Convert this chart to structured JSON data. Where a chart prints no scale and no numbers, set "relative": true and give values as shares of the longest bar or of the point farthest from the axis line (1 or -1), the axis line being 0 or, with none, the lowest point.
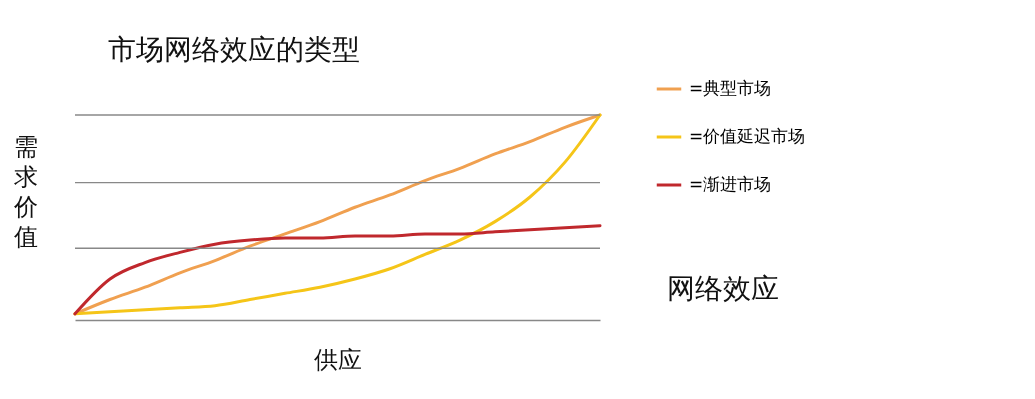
{
  "chart_data": {
    "type": "line",
    "title": "市场网络效应的类型",
    "xlabel": "供应",
    "ylabel": "需求价值",
    "annotations": [
      "网络效应"
    ],
    "relative": true,
    "ref_lines": [
      {
        "axis": "y",
        "value": 0.35,
        "color": "#888888"
      },
      {
        "axis": "y",
        "value": 0.67,
        "color": "#888888"
      },
      {
        "axis": "y",
        "value": 1,
        "color": "#888888"
      }
    ],
    "legend": "right",
    "marker": "none",
    "line_style": "solid",
    "categories": [
      null,
      null,
      null,
      null,
      null,
      null,
      null,
      null,
      null,
      null,
      null,
      null,
      null,
      null,
      null,
      null
    ],
    "series": [
      {
        "name": "=典型市场",
        "color": "#f0a050",
        "values": [
          0.03,
          0.1,
          0.16,
          0.23,
          0.29,
          0.36,
          0.42,
          0.48,
          0.55,
          0.61,
          0.68,
          0.74,
          0.81,
          0.87,
          0.94,
          1.0
        ]
      },
      {
        "name": "=价值延迟市场",
        "color": "#f5c518",
        "values": [
          0.03,
          0.04,
          0.05,
          0.06,
          0.07,
          0.1,
          0.13,
          0.16,
          0.2,
          0.25,
          0.32,
          0.39,
          0.48,
          0.6,
          0.77,
          1.0
        ]
      },
      {
        "name": "=渐进市场",
        "color": "#c0282d",
        "values": [
          0.03,
          0.2,
          0.28,
          0.33,
          0.37,
          0.39,
          0.4,
          0.4,
          0.41,
          0.41,
          0.42,
          0.42,
          0.43,
          0.44,
          0.45,
          0.46
        ]
      }
    ]
  }
}
